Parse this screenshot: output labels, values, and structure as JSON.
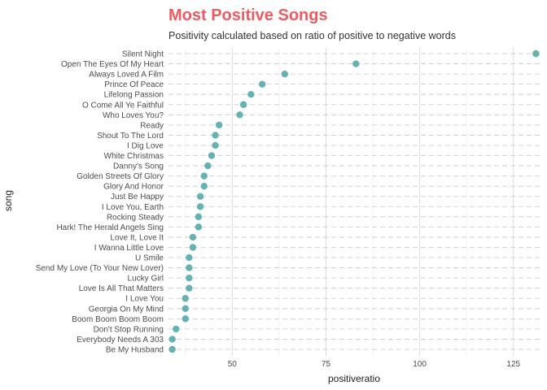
{
  "chart_data": {
    "type": "scatter",
    "title": "Most Positive Songs",
    "subtitle": "Positivity calculated based on ratio of positive to negative words",
    "xlabel": "positiveratio",
    "ylabel": "song",
    "xlim": [
      33,
      132
    ],
    "xticks": [
      50,
      75,
      100,
      125
    ],
    "point_color": "#66b2b2",
    "title_color": "#f05a5f",
    "categories": [
      "Silent Night",
      "Open The Eyes Of My Heart",
      "Always Loved A Film",
      "Prince Of Peace",
      "Lifelong Passion",
      "O Come All Ye Faithful",
      "Who Loves You?",
      "Ready",
      "Shout To The Lord",
      "I Dig Love",
      "White Christmas",
      "Danny's Song",
      "Golden Streets Of Glory",
      "Glory And Honor",
      "Just Be Happy",
      "I Love You, Earth",
      "Rocking Steady",
      "Hark! The Herald Angels Sing",
      "Love It, Love It",
      "I Wanna Little Love",
      "U Smile",
      "Send My Love (To Your New Lover)",
      "Lucky Girl",
      "Love Is All That Matters",
      "I Love You",
      "Georgia On My Mind",
      "Boom Boom Boom Boom",
      "Don't Stop Running",
      "Everybody Needs A 303",
      "Be My Husband"
    ],
    "values": [
      131,
      83,
      64,
      58,
      55,
      53,
      52,
      46.5,
      45.5,
      45.5,
      44.5,
      43.5,
      42.5,
      42.5,
      41.5,
      41.5,
      41,
      41,
      39.5,
      39.5,
      38.5,
      38.5,
      38.5,
      38.5,
      37.5,
      37.5,
      37.5,
      35,
      34,
      34
    ]
  }
}
